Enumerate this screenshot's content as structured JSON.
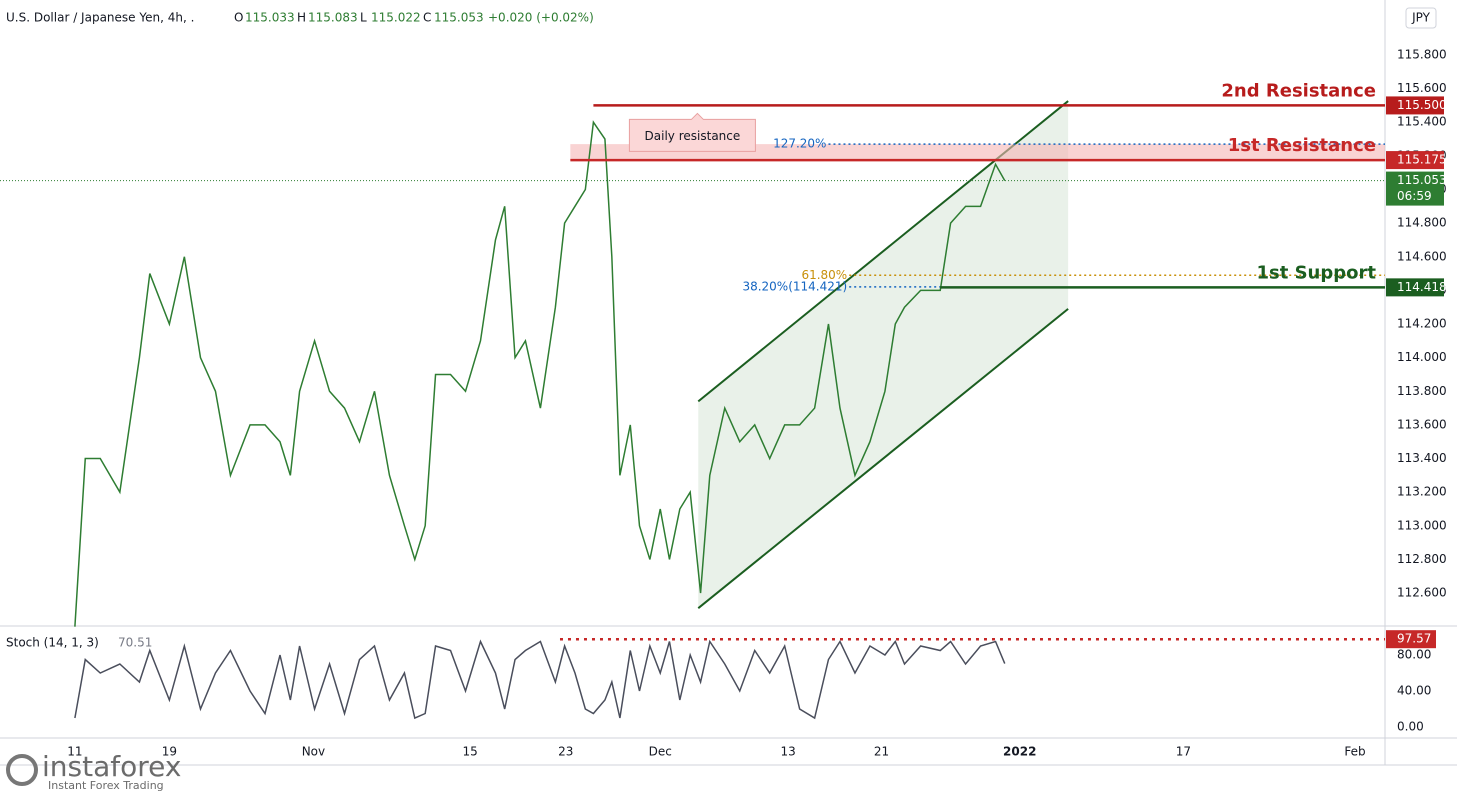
{
  "chart_data": {
    "type": "line",
    "header": {
      "symbol": "U.S. Dollar / Japanese Yen, 4h, .",
      "ohlc": [
        {
          "key": "O",
          "value": "115.033"
        },
        {
          "key": "H",
          "value": "115.083"
        },
        {
          "key": "L",
          "value": "115.022"
        },
        {
          "key": "C",
          "value": "115.053"
        }
      ],
      "change": "+0.020 (+0.02%)"
    },
    "currency": "JPY",
    "xlim": [
      277.5,
      397.7
    ],
    "xticks": [
      {
        "value": 284,
        "label": "11"
      },
      {
        "value": 292.2,
        "label": "19"
      },
      {
        "value": 304.7,
        "label": "Nov"
      },
      {
        "value": 318.3,
        "label": "15"
      },
      {
        "value": 326.6,
        "label": "23"
      },
      {
        "value": 334.8,
        "label": "Dec"
      },
      {
        "value": 345.9,
        "label": "13"
      },
      {
        "value": 354,
        "label": "21"
      },
      {
        "value": 366,
        "label": "2022"
      },
      {
        "value": 380.2,
        "label": "17"
      },
      {
        "value": 395.1,
        "label": "Feb"
      }
    ],
    "ylim": [
      112.41,
      116.127
    ],
    "yticks": [
      {
        "value": 112.6,
        "label": "112.600"
      },
      {
        "value": 112.8,
        "label": "112.800"
      },
      {
        "value": 113,
        "label": "113.000"
      },
      {
        "value": 113.2,
        "label": "113.200"
      },
      {
        "value": 113.4,
        "label": "113.400"
      },
      {
        "value": 113.6,
        "label": "113.600"
      },
      {
        "value": 113.8,
        "label": "113.800"
      },
      {
        "value": 114,
        "label": "114.000"
      },
      {
        "value": 114.2,
        "label": "114.200"
      },
      {
        "value": 114.4,
        "label": "114.400"
      },
      {
        "value": 114.6,
        "label": "114.600"
      },
      {
        "value": 114.8,
        "label": "114.800"
      },
      {
        "value": 115,
        "label": "115.000"
      },
      {
        "value": 115.2,
        "label": "115.200"
      },
      {
        "value": 115.4,
        "label": "115.400"
      },
      {
        "value": 115.6,
        "label": "115.600"
      },
      {
        "value": 115.8,
        "label": "115.800"
      }
    ],
    "x": [
      284.0,
      284.9,
      286.2,
      287.9,
      289.6,
      290.5,
      292.2,
      293.5,
      294.9,
      296.2,
      297.5,
      299.2,
      300.5,
      301.8,
      302.7,
      303.5,
      304.8,
      306.1,
      307.4,
      308.7,
      310.0,
      311.3,
      312.6,
      313.5,
      314.4,
      315.3,
      316.6,
      317.9,
      319.2,
      320.5,
      321.3,
      322.2,
      323.1,
      324.4,
      325.7,
      326.5,
      327.4,
      328.3,
      329.0,
      330.0,
      330.6,
      331.3,
      332.2,
      333.0,
      333.9,
      334.8,
      335.6,
      336.5,
      337.4,
      338.3,
      339.1,
      340.4,
      341.7,
      343.0,
      344.3,
      345.6,
      346.9,
      348.2,
      349.4,
      350.4,
      351.7,
      353.0,
      354.3,
      355.2,
      356.0,
      357.4,
      359.1,
      360.0,
      361.3,
      362.6,
      363.9,
      364.7
    ],
    "series": [
      {
        "color": "#2e7d32",
        "values": [
          112.4,
          113.4,
          113.4,
          113.2,
          114.0,
          114.5,
          114.2,
          114.6,
          114.0,
          113.8,
          113.3,
          113.6,
          113.6,
          113.5,
          113.3,
          113.8,
          114.1,
          113.8,
          113.7,
          113.5,
          113.8,
          113.3,
          113.0,
          112.8,
          113.0,
          113.9,
          113.9,
          113.8,
          114.1,
          114.7,
          114.9,
          114.0,
          114.1,
          113.7,
          114.3,
          114.8,
          114.9,
          115.0,
          115.4,
          115.3,
          114.6,
          113.3,
          113.6,
          113.0,
          112.8,
          113.1,
          112.8,
          113.1,
          113.2,
          112.6,
          113.3,
          113.7,
          113.5,
          113.6,
          113.4,
          113.6,
          113.6,
          113.7,
          114.2,
          113.7,
          113.3,
          113.5,
          113.8,
          114.2,
          114.3,
          114.4,
          114.4,
          114.8,
          114.9,
          114.9,
          115.15,
          115.053
        ]
      }
    ],
    "levels": [
      {
        "name": "2nd Resistance",
        "value": 115.5,
        "value_label": "115.500",
        "color": "#b71c1c",
        "x0": 329.0
      },
      {
        "name": "1st Resistance",
        "value": 115.175,
        "value_label": "115.175",
        "color": "#c62828",
        "x0": 327.0
      },
      {
        "name": "1st Support",
        "value": 114.418,
        "value_label": "114.418",
        "color": "#1b5e20",
        "x0": 359.1
      }
    ],
    "current": {
      "value": 115.053,
      "value_label": "115.053",
      "countdown": "06:59",
      "color": "#2e7d32"
    },
    "fibs": [
      {
        "label": "127.20%",
        "value": 115.27,
        "color": "#1565c0",
        "x0": 349.4,
        "x1": 397.7
      },
      {
        "label": "61.80%",
        "value": 114.49,
        "color": "#c8900a",
        "x0": 351.2,
        "x1": 397.7
      },
      {
        "label": "38.20%(114.421)",
        "value": 114.421,
        "color": "#1565c0",
        "x0": 351.2,
        "x1": 359.1
      }
    ],
    "channel": {
      "color": "#1b5e20",
      "upper": {
        "x": [
          338.1,
          370.2
        ],
        "y": [
          113.74,
          115.526
        ]
      },
      "lower": {
        "x": [
          338.1,
          370.2
        ],
        "y": [
          112.51,
          114.29
        ]
      }
    },
    "note": "Daily resistance",
    "stoch": {
      "name": "Stoch (14, 1, 3)",
      "color": "#4a4e5c",
      "ylim": [
        -12.2,
        110
      ],
      "yticks": [
        {
          "value": 0,
          "label": "0.00"
        },
        {
          "value": 40,
          "label": "40.00"
        },
        {
          "value": 80,
          "label": "80.00"
        }
      ],
      "level": {
        "value": 97.57,
        "value_label": "97.57",
        "color": "#c62828",
        "x0": 326.1
      },
      "values": [
        10,
        75,
        60,
        70,
        50,
        85,
        30,
        90,
        20,
        60,
        85,
        40,
        15,
        80,
        30,
        90,
        20,
        70,
        15,
        75,
        90,
        30,
        60,
        10,
        15,
        90,
        85,
        40,
        95,
        60,
        20,
        75,
        85,
        95,
        50,
        90,
        60,
        20,
        15,
        30,
        50,
        10,
        85,
        40,
        90,
        60,
        95,
        30,
        80,
        50,
        95,
        70,
        40,
        85,
        60,
        90,
        20,
        10,
        75,
        95,
        60,
        90,
        80,
        95,
        70,
        90,
        85,
        95,
        70,
        90,
        95,
        70.51
      ]
    },
    "watermark": {
      "brand": "instaforex",
      "tagline": "Instant Forex Trading"
    }
  }
}
